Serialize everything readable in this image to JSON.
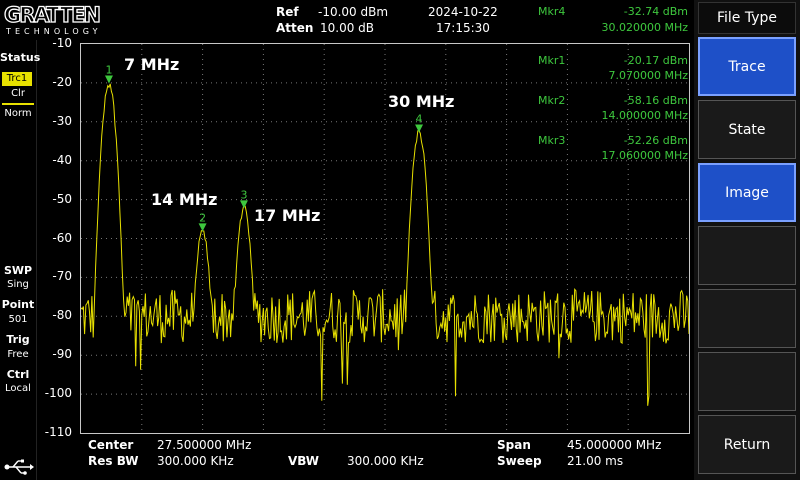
{
  "brand": {
    "name": "GRATTEN",
    "sub": "TECHNOLOGY"
  },
  "header": {
    "ref_label": "Ref",
    "ref_value": "-10.00 dBm",
    "atten_label": "Atten",
    "atten_value": "10.00 dB",
    "date": "2024-10-22",
    "time": "17:15:30",
    "active_marker_label": "Mkr4",
    "active_marker_level": "-32.74 dBm",
    "active_marker_freq": "30.020000 MHz"
  },
  "status_panel": {
    "status_title": "Status",
    "trace_badge": "Trc1",
    "trace_mode": "Clr",
    "detector": "Norm",
    "swp_title": "SWP",
    "swp_val": "Sing",
    "point_title": "Point",
    "point_val": "501",
    "trig_title": "Trig",
    "trig_val": "Free",
    "ctrl_title": "Ctrl",
    "ctrl_val": "Local",
    "usb_icon": "usb-icon"
  },
  "y_ticks": [
    "-10",
    "-20",
    "-30",
    "-40",
    "-50",
    "-60",
    "-70",
    "-80",
    "-90",
    "-100",
    "-110"
  ],
  "markers": [
    {
      "label": "Mkr1",
      "level": "-20.17 dBm",
      "freq": "7.070000 MHz",
      "num": "1",
      "x_mhz": 7.07,
      "y_dbm": -20.17
    },
    {
      "label": "Mkr2",
      "level": "-58.16 dBm",
      "freq": "14.000000 MHz",
      "num": "2",
      "x_mhz": 14.0,
      "y_dbm": -58.16
    },
    {
      "label": "Mkr3",
      "level": "-52.26 dBm",
      "freq": "17.060000 MHz",
      "num": "3",
      "x_mhz": 17.06,
      "y_dbm": -52.26
    },
    {
      "label": "Mkr4",
      "level": "-32.74 dBm",
      "freq": "30.020000 MHz",
      "num": "4",
      "x_mhz": 30.02,
      "y_dbm": -32.74
    }
  ],
  "annotations": [
    "7 MHz",
    "14 MHz",
    "17 MHz",
    "30 MHz"
  ],
  "bottom": {
    "center_label": "Center",
    "center_value": "27.500000 MHz",
    "rbw_label": "Res BW",
    "rbw_value": "300.000 KHz",
    "vbw_label": "VBW",
    "vbw_value": "300.000 KHz",
    "span_label": "Span",
    "span_value": "45.000000 MHz",
    "sweep_label": "Sweep",
    "sweep_value": "21.00 ms"
  },
  "softkeys": {
    "title": "File Type",
    "trace": "Trace",
    "state": "State",
    "image": "Image",
    "return": "Return"
  },
  "trace": {
    "color": "#e8e100",
    "start_mhz": 5.0,
    "stop_mhz": 50.0,
    "ref_dbm": -10,
    "bottom_dbm": -110,
    "noise_floor_dbm": -80
  },
  "colors": {
    "marker": "#3ec83e",
    "softkey_selected": "#1e50c8",
    "trace": "#e8e100"
  }
}
